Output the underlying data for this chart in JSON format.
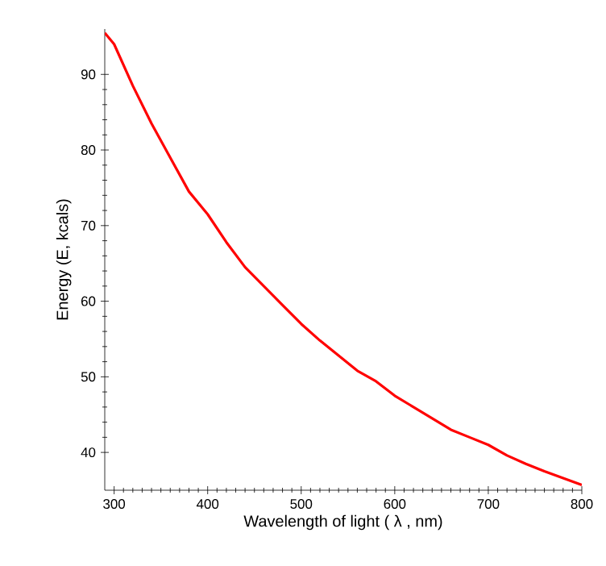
{
  "chart_data": {
    "type": "line",
    "xlabel": "Wavelength of light ( λ , nm)",
    "ylabel": "Energy (E, kcals)",
    "x": [
      290,
      300,
      320,
      340,
      360,
      380,
      400,
      420,
      440,
      460,
      480,
      500,
      520,
      540,
      560,
      580,
      600,
      620,
      640,
      660,
      680,
      700,
      720,
      740,
      760,
      780,
      800
    ],
    "series": [
      {
        "color": "#ff0000",
        "values": [
          95.5,
          94.0,
          88.5,
          83.5,
          79.0,
          74.5,
          71.5,
          67.8,
          64.5,
          62.0,
          59.5,
          57.0,
          54.8,
          52.8,
          50.8,
          49.4,
          47.5,
          46.0,
          44.5,
          43.0,
          42.0,
          41.0,
          39.6,
          38.5,
          37.5,
          36.6,
          35.7
        ]
      }
    ],
    "xlim": [
      290,
      800
    ],
    "ylim": [
      35,
      96
    ],
    "xticks": [
      300,
      400,
      500,
      600,
      700,
      800
    ],
    "yticks": [
      40,
      50,
      60,
      70,
      80,
      90
    ],
    "marker": "none",
    "line_style": "solid"
  }
}
